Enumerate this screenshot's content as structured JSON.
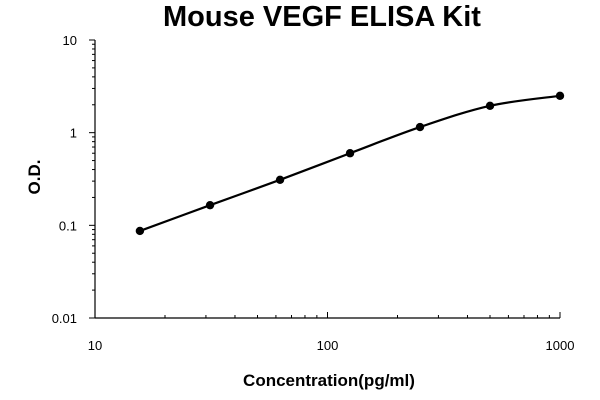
{
  "chart_data": {
    "type": "scatter",
    "title": "Mouse VEGF ELISA Kit",
    "xlabel": "Concentration(pg/ml)",
    "ylabel": "O.D.",
    "x_scale": "log",
    "y_scale": "log",
    "xlim": [
      10,
      1000
    ],
    "ylim": [
      0.01,
      10
    ],
    "x_ticks": [
      "10",
      "100",
      "1000"
    ],
    "y_ticks": [
      "10",
      "1",
      "0.1",
      "0.01"
    ],
    "grid": false,
    "legend": "none",
    "series": [
      {
        "x": [
          15.6,
          31.25,
          62.5,
          125,
          250,
          500,
          1000
        ],
        "y": [
          0.087,
          0.165,
          0.31,
          0.6,
          1.15,
          1.95,
          2.5
        ]
      }
    ]
  }
}
